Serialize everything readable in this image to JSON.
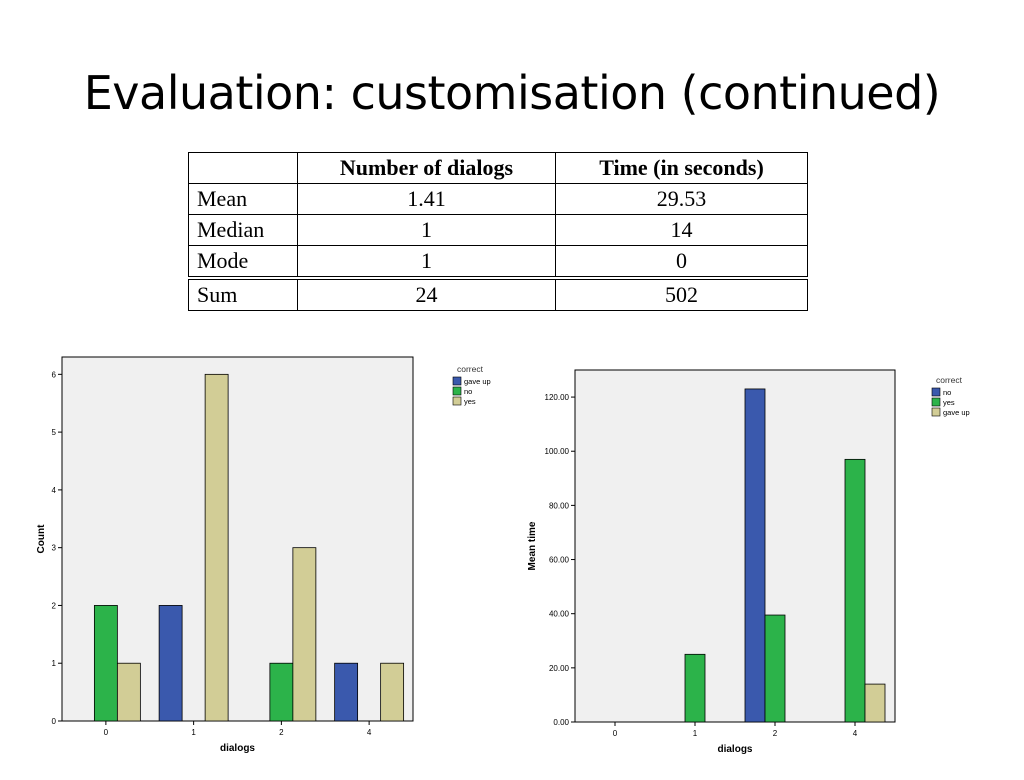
{
  "slide": {
    "title": "Evaluation: customisation (continued)"
  },
  "table": {
    "headers": [
      "",
      "Number of dialogs",
      "Time (in seconds)"
    ],
    "rows": [
      [
        "Mean",
        "1.41",
        "29.53"
      ],
      [
        "Median",
        "1",
        "14"
      ],
      [
        "Mode",
        "1",
        "0"
      ],
      [
        "Sum",
        "24",
        "502"
      ]
    ]
  },
  "chart_data": [
    {
      "type": "bar",
      "title": "",
      "xlabel": "dialogs",
      "ylabel": "Count",
      "categories": [
        "0",
        "1",
        "2",
        "4"
      ],
      "yticks": [
        "0",
        "1",
        "2",
        "3",
        "4",
        "5",
        "6"
      ],
      "ylim": [
        0,
        6.3
      ],
      "grid": false,
      "legend": {
        "title": "correct",
        "placement": "top-right-outside"
      },
      "series": [
        {
          "name": "gave up",
          "color": "#3a59ad",
          "values": [
            0,
            2,
            0,
            1
          ]
        },
        {
          "name": "no",
          "color": "#2cb34a",
          "values": [
            2,
            0,
            1,
            0
          ]
        },
        {
          "name": "yes",
          "color": "#d2cd96",
          "values": [
            1,
            6,
            3,
            1
          ]
        }
      ]
    },
    {
      "type": "bar",
      "title": "",
      "xlabel": "dialogs",
      "ylabel": "Mean time",
      "categories": [
        "0",
        "1",
        "2",
        "4"
      ],
      "yticks": [
        "0.00",
        "20.00",
        "40.00",
        "60.00",
        "80.00",
        "100.00",
        "120.00"
      ],
      "ylim": [
        0,
        130
      ],
      "grid": false,
      "legend": {
        "title": "correct",
        "placement": "top-right-outside"
      },
      "series": [
        {
          "name": "no",
          "color": "#3a59ad",
          "values": [
            0,
            0,
            123,
            0
          ]
        },
        {
          "name": "yes",
          "color": "#2cb34a",
          "values": [
            0,
            25,
            39.5,
            97
          ]
        },
        {
          "name": "gave up",
          "color": "#d2cd96",
          "values": [
            0,
            0,
            0,
            14
          ]
        }
      ]
    }
  ]
}
